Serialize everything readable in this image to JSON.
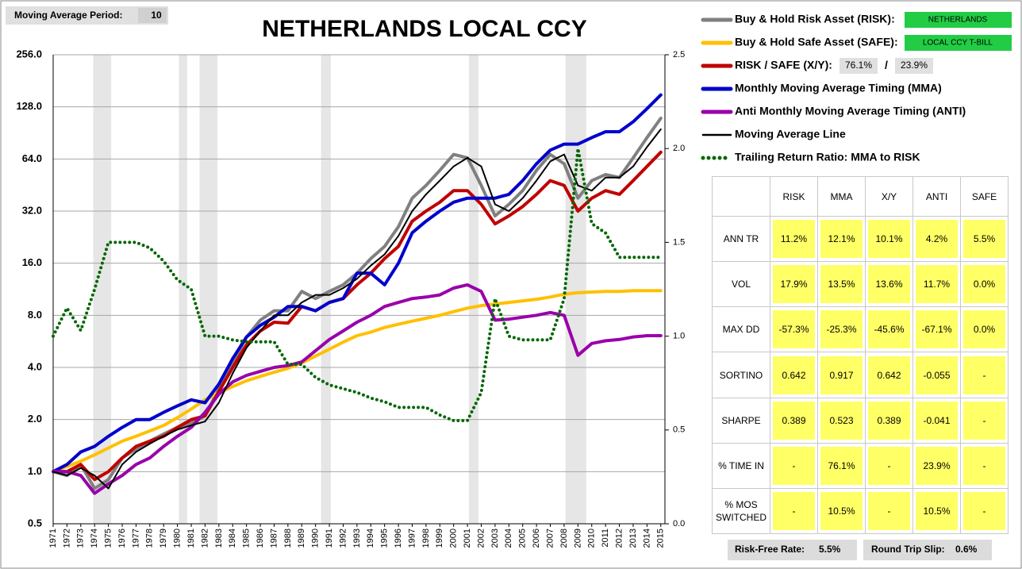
{
  "header": {
    "ma_period_label": "Moving Average Period:",
    "ma_period": "10"
  },
  "chart_data": {
    "type": "line",
    "title": "NETHERLANDS LOCAL CCY",
    "yscale": "log",
    "grid": true,
    "x": [
      1971,
      1972,
      1973,
      1974,
      1975,
      1976,
      1977,
      1978,
      1979,
      1980,
      1981,
      1982,
      1983,
      1984,
      1985,
      1986,
      1987,
      1988,
      1989,
      1990,
      1991,
      1992,
      1993,
      1994,
      1995,
      1996,
      1997,
      1998,
      1999,
      2000,
      2001,
      2002,
      2003,
      2004,
      2005,
      2006,
      2007,
      2008,
      2009,
      2010,
      2011,
      2012,
      2013,
      2014,
      2015
    ],
    "xlim": [
      1971,
      2015.3
    ],
    "xticks": [
      1971,
      1972,
      1973,
      1974,
      1975,
      1976,
      1977,
      1978,
      1979,
      1980,
      1981,
      1982,
      1983,
      1984,
      1985,
      1986,
      1987,
      1988,
      1989,
      1990,
      1991,
      1992,
      1993,
      1994,
      1995,
      1996,
      1997,
      1998,
      1999,
      2000,
      2001,
      2002,
      2003,
      2004,
      2005,
      2006,
      2007,
      2008,
      2009,
      2010,
      2011,
      2012,
      2013,
      2014,
      2015
    ],
    "ylim": [
      0.5,
      256
    ],
    "yticks": [
      0.5,
      {
        "value": 1,
        "label": "1.0"
      },
      {
        "value": 2,
        "label": "2.0"
      },
      {
        "value": 4,
        "label": "4.0"
      },
      {
        "value": 8,
        "label": "8.0"
      },
      {
        "value": 16,
        "label": "16.0"
      },
      {
        "value": 32,
        "label": "32.0"
      },
      {
        "value": 64,
        "label": "64.0"
      },
      {
        "value": 128,
        "label": "128.0"
      },
      {
        "value": 256,
        "label": "256.0"
      }
    ],
    "y2lim": [
      0,
      2.5
    ],
    "y2ticks": [
      {
        "value": 0,
        "label": "0.0"
      },
      0.5,
      {
        "value": 1,
        "label": "1.0"
      },
      1.5,
      {
        "value": 2,
        "label": "2.0"
      },
      2.5
    ],
    "shaded_ranges": [
      [
        1973.9,
        1975.2
      ],
      [
        1980.1,
        1980.7
      ],
      [
        1981.6,
        1982.9
      ],
      [
        1990.4,
        1991.1
      ],
      [
        2001.1,
        2001.8
      ],
      [
        2008.1,
        2009.6
      ]
    ],
    "series": [
      {
        "name": "Buy & Hold Risk Asset (RISK):",
        "color": "#808080",
        "values": [
          1.0,
          0.95,
          1.1,
          0.8,
          0.9,
          1.2,
          1.35,
          1.5,
          1.65,
          1.8,
          1.9,
          2.1,
          3.0,
          4.2,
          6.0,
          7.5,
          8.5,
          8.5,
          11,
          10,
          11,
          12,
          14,
          17,
          20,
          26,
          38,
          45,
          55,
          68,
          65,
          45,
          30,
          35,
          42,
          55,
          68,
          60,
          38,
          48,
          52,
          50,
          65,
          85,
          110
        ]
      },
      {
        "name": "Buy & Hold Safe Asset (SAFE):",
        "color": "#ffc000",
        "values": [
          1.0,
          1.07,
          1.15,
          1.25,
          1.37,
          1.5,
          1.6,
          1.72,
          1.85,
          2.05,
          2.3,
          2.6,
          2.85,
          3.1,
          3.35,
          3.55,
          3.75,
          3.95,
          4.25,
          4.65,
          5.1,
          5.6,
          6.1,
          6.4,
          6.8,
          7.1,
          7.4,
          7.7,
          8.0,
          8.4,
          8.8,
          9.1,
          9.3,
          9.5,
          9.7,
          9.9,
          10.2,
          10.6,
          10.8,
          10.9,
          11.0,
          11.0,
          11.1,
          11.1,
          11.1
        ]
      },
      {
        "name": "RISK / SAFE (X/Y):",
        "color": "#c00000",
        "values": [
          1.0,
          1.0,
          1.1,
          0.9,
          1.0,
          1.2,
          1.4,
          1.5,
          1.6,
          1.8,
          2.0,
          2.1,
          2.9,
          4.0,
          5.4,
          6.5,
          7.3,
          7.2,
          9.0,
          8.5,
          9.5,
          10,
          12,
          14,
          17,
          20,
          28,
          32,
          36,
          42,
          42,
          35,
          27,
          30,
          34,
          40,
          48,
          45,
          32,
          38,
          42,
          40,
          48,
          58,
          70
        ]
      },
      {
        "name": "Monthly Moving Average Timing (MMA)",
        "color": "#0000cc",
        "values": [
          1.0,
          1.1,
          1.3,
          1.4,
          1.6,
          1.8,
          2.0,
          2.0,
          2.2,
          2.4,
          2.6,
          2.5,
          3.2,
          4.5,
          6.0,
          7.0,
          7.8,
          9.0,
          9.0,
          8.5,
          9.5,
          10,
          14,
          14,
          12,
          16,
          24,
          28,
          32,
          36,
          38,
          38,
          38,
          40,
          48,
          60,
          72,
          78,
          78,
          85,
          92,
          92,
          105,
          125,
          150
        ]
      },
      {
        "name": "Anti Monthly Moving Average Timing (ANTI)",
        "color": "#9900aa",
        "values": [
          1.0,
          1.0,
          0.95,
          0.75,
          0.85,
          0.95,
          1.1,
          1.2,
          1.4,
          1.6,
          1.8,
          2.2,
          2.8,
          3.3,
          3.6,
          3.8,
          4.0,
          4.1,
          4.3,
          5.0,
          5.8,
          6.5,
          7.3,
          8.0,
          9.0,
          9.5,
          10,
          10.2,
          10.5,
          11.5,
          12,
          11,
          7.5,
          7.6,
          7.8,
          8.0,
          8.3,
          8.0,
          4.7,
          5.5,
          5.7,
          5.8,
          6.0,
          6.1,
          6.1
        ]
      },
      {
        "name": "Moving Average Line",
        "color": "#000000",
        "values": [
          1.0,
          0.95,
          1.05,
          0.95,
          0.8,
          1.1,
          1.3,
          1.45,
          1.6,
          1.75,
          1.85,
          1.95,
          2.5,
          3.7,
          5.2,
          6.5,
          8.0,
          8.0,
          9.5,
          10.5,
          10.5,
          11.5,
          13,
          15.5,
          18,
          23,
          32,
          40,
          48,
          58,
          65,
          58,
          35,
          32,
          38,
          48,
          62,
          68,
          45,
          42,
          50,
          50,
          58,
          75,
          95
        ]
      },
      {
        "name": "Trailing Return Ratio: MMA to RISK",
        "color": "#006600",
        "style": "dotted",
        "axis": "y2",
        "values": [
          1.0,
          1.15,
          1.03,
          1.25,
          1.5,
          1.5,
          1.5,
          1.47,
          1.4,
          1.3,
          1.25,
          1.0,
          1.0,
          0.98,
          0.97,
          0.97,
          0.97,
          0.85,
          0.85,
          0.78,
          0.74,
          0.72,
          0.7,
          0.67,
          0.65,
          0.62,
          0.62,
          0.62,
          0.58,
          0.55,
          0.55,
          0.7,
          1.2,
          1.0,
          0.98,
          0.98,
          0.98,
          1.2,
          2.0,
          1.6,
          1.55,
          1.42,
          1.42,
          1.42,
          1.42
        ]
      }
    ]
  },
  "legend_extras": {
    "risk_asset": "NETHERLANDS",
    "safe_asset": "LOCAL CCY T-BILL",
    "xy_risk": "76.1%",
    "separator": "/",
    "xy_safe": "23.9%"
  },
  "table": {
    "columns": [
      "RISK",
      "MMA",
      "X/Y",
      "ANTI",
      "SAFE"
    ],
    "rows": [
      {
        "label": "ANN TR",
        "cells": [
          "11.2%",
          "12.1%",
          "10.1%",
          "4.2%",
          "5.5%"
        ]
      },
      {
        "label": "VOL",
        "cells": [
          "17.9%",
          "13.5%",
          "13.6%",
          "11.7%",
          "0.0%"
        ]
      },
      {
        "label": "MAX DD",
        "cells": [
          "-57.3%",
          "-25.3%",
          "-45.6%",
          "-67.1%",
          "0.0%"
        ]
      },
      {
        "label": "SORTINO",
        "cells": [
          "0.642",
          "0.917",
          "0.642",
          "-0.055",
          "-"
        ]
      },
      {
        "label": "SHARPE",
        "cells": [
          "0.389",
          "0.523",
          "0.389",
          "-0.041",
          "-"
        ]
      },
      {
        "label": "% TIME IN",
        "cells": [
          "-",
          "76.1%",
          "-",
          "23.9%",
          "-"
        ]
      },
      {
        "label": "% MOS SWITCHED",
        "cells": [
          "-",
          "10.5%",
          "-",
          "10.5%",
          "-"
        ]
      }
    ]
  },
  "footer": {
    "risk_free_label": "Risk-Free Rate:",
    "risk_free": "5.5%",
    "slip_label": "Round Trip Slip:",
    "slip": "0.6%"
  }
}
